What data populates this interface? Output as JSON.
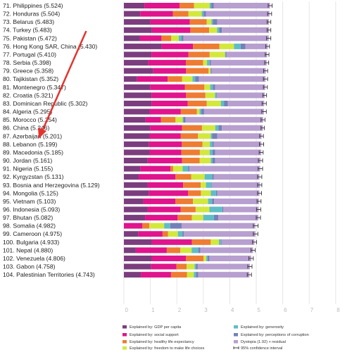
{
  "chart_data": {
    "type": "bar",
    "orientation": "horizontal",
    "stacked": true,
    "xlim": [
      0,
      8
    ],
    "xticks": [
      "0",
      "1",
      "2",
      "3",
      "4",
      "5",
      "6",
      "7",
      "8"
    ],
    "grid": true,
    "legend_position": "bottom",
    "components": [
      {
        "key": "gdp",
        "name": "Explained by: GDP per capita",
        "color": "#7b3d7e"
      },
      {
        "key": "social",
        "name": "Explained by: social support",
        "color": "#e0148c"
      },
      {
        "key": "health",
        "name": "Explained by: healthy life expectancy",
        "color": "#ee7c33"
      },
      {
        "key": "freedom",
        "name": "Explained by: freedom to make life choices",
        "color": "#d3e83c"
      },
      {
        "key": "generosity",
        "name": "Explained by: generosity",
        "color": "#5fbdc6"
      },
      {
        "key": "corruption",
        "name": "Explained by: perceptions of corruption",
        "color": "#7480b8"
      },
      {
        "key": "dystopia",
        "name": "Dystopia (1.92) + residual",
        "color": "#b79fd0"
      }
    ],
    "ci_legend_label": "95% confidence interval",
    "rows": [
      {
        "label": "71.  Philippines (5.524)",
        "score": 5.524,
        "ci": [
          5.45,
          5.6
        ],
        "values": [
          0.78,
          1.32,
          0.55,
          0.59,
          0.06,
          0.1,
          2.12
        ]
      },
      {
        "label": "72.  Honduras (5.504)",
        "score": 5.504,
        "ci": [
          5.43,
          5.58
        ],
        "values": [
          0.62,
          1.23,
          0.59,
          0.5,
          0.07,
          0.09,
          2.4
        ]
      },
      {
        "label": "73.  Belarus (5.483)",
        "score": 5.483,
        "ci": [
          5.41,
          5.55
        ],
        "values": [
          1.0,
          1.49,
          0.64,
          0.18,
          0.05,
          0.17,
          1.95
        ]
      },
      {
        "label": "74.  Turkey (5.483)",
        "score": 5.483,
        "ci": [
          5.41,
          5.55
        ],
        "values": [
          1.06,
          1.45,
          0.71,
          0.3,
          0.08,
          0.1,
          1.78
        ]
      },
      {
        "label": "75.  Pakistan (5.472)",
        "score": 5.472,
        "ci": [
          5.39,
          5.55
        ],
        "values": [
          0.61,
          0.81,
          0.37,
          0.28,
          0.1,
          0.08,
          3.22
        ]
      },
      {
        "label": "76.  Hong Kong SAR, China (5.430)",
        "score": 5.43,
        "ci": [
          5.36,
          5.5
        ],
        "values": [
          1.42,
          1.19,
          1.0,
          0.55,
          0.25,
          0.18,
          0.84
        ]
      },
      {
        "label": "77.  Portugal (5.410)",
        "score": 5.41,
        "ci": [
          5.34,
          5.48
        ],
        "values": [
          1.04,
          1.4,
          0.8,
          0.58,
          0.02,
          0.03,
          1.54
        ]
      },
      {
        "label": "78.  Serbia (5.398)",
        "score": 5.398,
        "ci": [
          5.32,
          5.47
        ],
        "values": [
          0.92,
          1.42,
          0.65,
          0.15,
          0.1,
          0.05,
          2.1
        ]
      },
      {
        "label": "79.  Greece (5.358)",
        "score": 5.358,
        "ci": [
          5.28,
          5.43
        ],
        "values": [
          1.1,
          1.25,
          0.85,
          0.07,
          0.01,
          0.03,
          2.05
        ]
      },
      {
        "label": "80.  Tajikistan (5.352)",
        "score": 5.352,
        "ci": [
          5.27,
          5.43
        ],
        "values": [
          0.5,
          1.15,
          0.55,
          0.39,
          0.1,
          0.15,
          2.51
        ]
      },
      {
        "label": "81.  Montenegro (5.347)",
        "score": 5.347,
        "ci": [
          5.27,
          5.42
        ],
        "values": [
          0.99,
          1.31,
          0.74,
          0.22,
          0.1,
          0.09,
          1.89
        ]
      },
      {
        "label": "82.  Croatia (5.321)",
        "score": 5.321,
        "ci": [
          5.25,
          5.39
        ],
        "values": [
          1.04,
          1.31,
          0.73,
          0.36,
          0.05,
          0.02,
          1.81
        ]
      },
      {
        "label": "83.  Dominican Republic (5.302)",
        "score": 5.302,
        "ci": [
          5.22,
          5.38
        ],
        "values": [
          1.04,
          1.37,
          0.72,
          0.53,
          0.12,
          0.15,
          1.37
        ]
      },
      {
        "label": "84.  Algeria (5.295)",
        "score": 5.295,
        "ci": [
          5.21,
          5.38
        ],
        "values": [
          0.97,
          1.18,
          0.61,
          0.1,
          0.06,
          0.11,
          2.26
        ]
      },
      {
        "label": "85.  Morocco (5.254)",
        "score": 5.254,
        "ci": [
          5.18,
          5.33
        ],
        "values": [
          0.82,
          0.58,
          0.55,
          0.27,
          0.03,
          0.08,
          2.93
        ]
      },
      {
        "label": "86.  China (5.246)",
        "score": 5.246,
        "ci": [
          5.18,
          5.31
        ],
        "values": [
          0.99,
          1.21,
          0.75,
          0.5,
          0.12,
          0.13,
          1.55
        ]
      },
      {
        "label": "87.  Azerbaijan (5.201)",
        "score": 5.201,
        "ci": [
          5.13,
          5.27
        ],
        "values": [
          0.97,
          1.18,
          0.65,
          0.48,
          0.05,
          0.2,
          1.67
        ]
      },
      {
        "label": "88.  Lebanon (5.199)",
        "score": 5.199,
        "ci": [
          5.12,
          5.28
        ],
        "values": [
          0.95,
          1.24,
          0.78,
          0.28,
          0.1,
          0.04,
          1.8
        ]
      },
      {
        "label": "89.  Macedonia (5.185)",
        "score": 5.185,
        "ci": [
          5.11,
          5.26
        ],
        "values": [
          0.97,
          1.2,
          0.7,
          0.37,
          0.11,
          0.1,
          1.74
        ]
      },
      {
        "label": "90.  Jordan (5.161)",
        "score": 5.161,
        "ci": [
          5.08,
          5.24
        ],
        "values": [
          0.9,
          1.3,
          0.66,
          0.42,
          0.07,
          0.1,
          1.71
        ]
      },
      {
        "label": "91.  Nigeria (5.155)",
        "score": 5.155,
        "ci": [
          5.07,
          5.24
        ],
        "values": [
          0.62,
          1.14,
          0.1,
          0.36,
          0.21,
          0.05,
          2.67
        ]
      },
      {
        "label": "92.  Kyrgyzstan (5.131)",
        "score": 5.131,
        "ci": [
          5.05,
          5.21
        ],
        "values": [
          0.56,
          1.39,
          0.59,
          0.51,
          0.29,
          0.05,
          1.73
        ]
      },
      {
        "label": "93.  Bosnia and Herzegovina (5.129)",
        "score": 5.129,
        "ci": [
          5.05,
          5.21
        ],
        "values": [
          0.89,
          1.35,
          0.66,
          0.2,
          0.21,
          0.01,
          1.82
        ]
      },
      {
        "label": "94.  Mongolia (5.125)",
        "score": 5.125,
        "ci": [
          5.05,
          5.2
        ],
        "values": [
          0.94,
          1.48,
          0.49,
          0.37,
          0.2,
          0.05,
          1.59
        ]
      },
      {
        "label": "95.  Vietnam (5.103)",
        "score": 5.103,
        "ci": [
          5.03,
          5.18
        ],
        "values": [
          0.73,
          1.22,
          0.66,
          0.57,
          0.15,
          0.08,
          1.69
        ]
      },
      {
        "label": "96.  Indonesia (5.093)",
        "score": 5.093,
        "ci": [
          5.01,
          5.17
        ],
        "values": [
          0.89,
          1.25,
          0.57,
          0.52,
          0.49,
          0.03,
          1.34
        ]
      },
      {
        "label": "97.  Bhutan (5.082)",
        "score": 5.082,
        "ci": [
          5.0,
          5.16
        ],
        "values": [
          0.8,
          1.23,
          0.54,
          0.43,
          0.4,
          0.17,
          1.51
        ]
      },
      {
        "label": "98.  Somalia (4.982)",
        "score": 4.982,
        "ci": [
          4.89,
          5.07
        ],
        "values": [
          0.0,
          0.7,
          0.26,
          0.56,
          0.23,
          0.43,
          2.78
        ]
      },
      {
        "label": "99.  Cameroon (4.975)",
        "score": 4.975,
        "ci": [
          4.89,
          5.06
        ],
        "values": [
          0.55,
          0.91,
          0.21,
          0.37,
          0.17,
          0.05,
          2.71
        ]
      },
      {
        "label": "100. Bulgaria (4.933)",
        "score": 4.933,
        "ci": [
          4.86,
          5.01
        ],
        "values": [
          1.05,
          1.52,
          0.71,
          0.31,
          0.08,
          0.01,
          1.25
        ]
      },
      {
        "label": "101. Nepal (4.880)",
        "score": 4.88,
        "ci": [
          4.8,
          4.96
        ],
        "values": [
          0.45,
          1.17,
          0.51,
          0.43,
          0.25,
          0.08,
          1.99
        ]
      },
      {
        "label": "102. Venezuela (4.806)",
        "score": 4.806,
        "ci": [
          4.72,
          4.89
        ],
        "values": [
          1.05,
          1.29,
          0.67,
          0.1,
          0.05,
          0.07,
          1.58
        ]
      },
      {
        "label": "103. Gabon (4.758)",
        "score": 4.758,
        "ci": [
          4.68,
          4.84
        ],
        "values": [
          1.02,
          0.96,
          0.39,
          0.3,
          0.05,
          0.07,
          1.97
        ]
      },
      {
        "label": "104. Palestinian Territories (4.743)",
        "score": 4.743,
        "ci": [
          4.66,
          4.82
        ],
        "values": [
          0.64,
          1.14,
          0.6,
          0.26,
          0.08,
          0.09,
          1.93
        ]
      }
    ]
  }
}
